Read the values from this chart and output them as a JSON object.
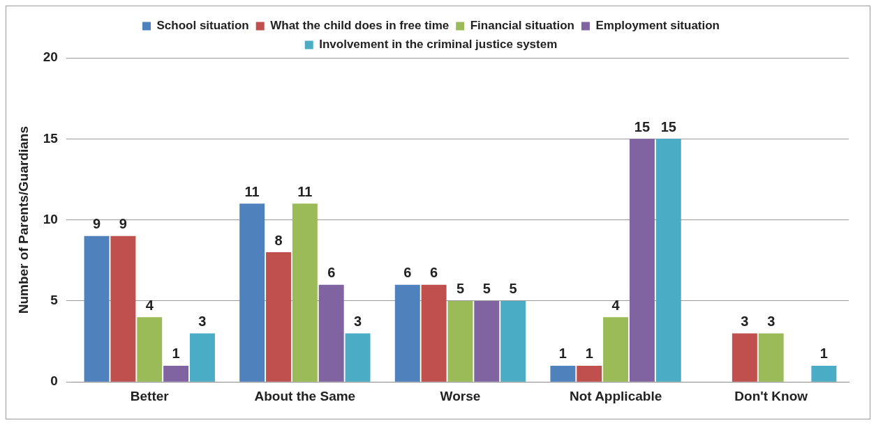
{
  "chart_data": {
    "type": "bar",
    "ylabel": "Number of Parents/Guardians",
    "categories": [
      "Better",
      "About the Same",
      "Worse",
      "Not Applicable",
      "Don't Know"
    ],
    "series": [
      {
        "name": "School situation",
        "color": "#4f81bd",
        "values": [
          9,
          11,
          6,
          1,
          0
        ],
        "value_labels": [
          "9",
          "11",
          "6",
          "1",
          null
        ]
      },
      {
        "name": "What the child does in free time",
        "color": "#c0504d",
        "values": [
          9,
          8,
          6,
          1,
          3
        ],
        "value_labels": [
          "9",
          "8",
          "6",
          "1",
          "3"
        ]
      },
      {
        "name": "Financial situation",
        "color": "#9bbb59",
        "values": [
          4,
          11,
          5,
          4,
          3
        ],
        "value_labels": [
          "4",
          "11",
          "5",
          "4",
          "3"
        ]
      },
      {
        "name": "Employment situation",
        "color": "#8064a2",
        "values": [
          1,
          6,
          5,
          15,
          0
        ],
        "value_labels": [
          "1",
          "6",
          "5",
          "15",
          null
        ]
      },
      {
        "name": "Involvement in the criminal justice system",
        "color": "#4bacc6",
        "values": [
          3,
          3,
          5,
          15,
          1
        ],
        "value_labels": [
          "3",
          "3",
          "5",
          "15",
          "1"
        ]
      }
    ],
    "ylim": [
      0,
      20
    ],
    "yticks": [
      0,
      5,
      10,
      15,
      20
    ],
    "grid": "y",
    "legend": "top"
  }
}
